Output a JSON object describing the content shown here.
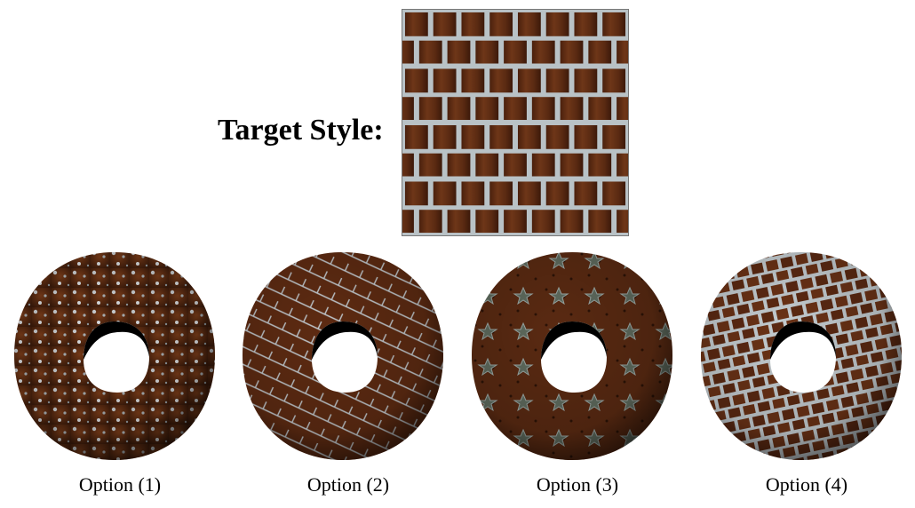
{
  "target_label": "Target Style:",
  "options": [
    {
      "label": "Option (1)",
      "style": "speckle"
    },
    {
      "label": "Option (2)",
      "style": "thin-lines"
    },
    {
      "label": "Option (3)",
      "style": "stars"
    },
    {
      "label": "Option (4)",
      "style": "bricks"
    }
  ],
  "colors": {
    "wood_light": "#6e3618",
    "wood_dark": "#3a1a0a",
    "mortar": "#b9c2c6",
    "background": "#ffffff"
  }
}
